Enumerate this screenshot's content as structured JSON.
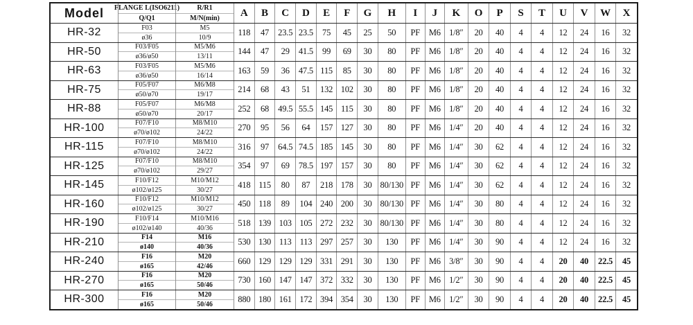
{
  "header": {
    "model_label": "Model",
    "flange_line1": "FLANGE L(ISO6211)",
    "flange_line2": "Q/Q1",
    "r_line1": "R/R1",
    "r_line2": "M/N(min)",
    "dim_columns": [
      "A",
      "B",
      "C",
      "D",
      "E",
      "F",
      "G",
      "H",
      "I",
      "J",
      "K",
      "O",
      "P",
      "S",
      "T",
      "U",
      "V",
      "W",
      "X"
    ]
  },
  "rows": [
    {
      "model": "HR-32",
      "flange": "F03",
      "q": "ø36",
      "r": "M5",
      "mn": "10/9",
      "values": [
        "118",
        "47",
        "23.5",
        "23.5",
        "75",
        "45",
        "25",
        "50",
        "PF",
        "M6",
        "1/8″",
        "20",
        "40",
        "4",
        "4",
        "12",
        "24",
        "16",
        "32"
      ]
    },
    {
      "model": "HR-50",
      "flange": "F03/F05",
      "q": "ø36/ø50",
      "r": "M5/M6",
      "mn": "13/11",
      "values": [
        "144",
        "47",
        "29",
        "41.5",
        "99",
        "69",
        "30",
        "80",
        "PF",
        "M6",
        "1/8″",
        "20",
        "40",
        "4",
        "4",
        "12",
        "24",
        "16",
        "32"
      ]
    },
    {
      "model": "HR-63",
      "flange": "F03/F05",
      "q": "ø36/ø50",
      "r": "M5/M6",
      "mn": "16/14",
      "values": [
        "163",
        "59",
        "36",
        "47.5",
        "115",
        "85",
        "30",
        "80",
        "PF",
        "M6",
        "1/8″",
        "20",
        "40",
        "4",
        "4",
        "12",
        "24",
        "16",
        "32"
      ]
    },
    {
      "model": "HR-75",
      "flange": "F05/F07",
      "q": "ø50/ø70",
      "r": "M6/M8",
      "mn": "19/17",
      "values": [
        "214",
        "68",
        "43",
        "51",
        "132",
        "102",
        "30",
        "80",
        "PF",
        "M6",
        "1/8″",
        "20",
        "40",
        "4",
        "4",
        "12",
        "24",
        "16",
        "32"
      ]
    },
    {
      "model": "HR-88",
      "flange": "F05/F07",
      "q": "ø50/ø70",
      "r": "M6/M8",
      "mn": "20/17",
      "values": [
        "252",
        "68",
        "49.5",
        "55.5",
        "145",
        "115",
        "30",
        "80",
        "PF",
        "M6",
        "1/8″",
        "20",
        "40",
        "4",
        "4",
        "12",
        "24",
        "16",
        "32"
      ]
    },
    {
      "model": "HR-100",
      "flange": "F07/F10",
      "q": "ø70/ø102",
      "r": "M8/M10",
      "mn": "24/22",
      "values": [
        "270",
        "95",
        "56",
        "64",
        "157",
        "127",
        "30",
        "80",
        "PF",
        "M6",
        "1/4″",
        "20",
        "40",
        "4",
        "4",
        "12",
        "24",
        "16",
        "32"
      ]
    },
    {
      "model": "HR-115",
      "flange": "F07/F10",
      "q": "ø70/ø102",
      "r": "M8/M10",
      "mn": "24/22",
      "values": [
        "316",
        "97",
        "64.5",
        "74.5",
        "185",
        "145",
        "30",
        "80",
        "PF",
        "M6",
        "1/4″",
        "30",
        "62",
        "4",
        "4",
        "12",
        "24",
        "16",
        "32"
      ]
    },
    {
      "model": "HR-125",
      "flange": "F07/F10",
      "q": "ø70/ø102",
      "r": "M8/M10",
      "mn": "29/27",
      "values": [
        "354",
        "97",
        "69",
        "78.5",
        "197",
        "157",
        "30",
        "80",
        "PF",
        "M6",
        "1/4″",
        "30",
        "62",
        "4",
        "4",
        "12",
        "24",
        "16",
        "32"
      ]
    },
    {
      "model": "HR-145",
      "flange": "F10/F12",
      "q": "ø102/ø125",
      "r": "M10/M12",
      "mn": "30/27",
      "values": [
        "418",
        "115",
        "80",
        "87",
        "218",
        "178",
        "30",
        "80/130",
        "PF",
        "M6",
        "1/4″",
        "30",
        "62",
        "4",
        "4",
        "12",
        "24",
        "16",
        "32"
      ]
    },
    {
      "model": "HR-160",
      "flange": "F10/F12",
      "q": "ø102/ø125",
      "r": "M10/M12",
      "mn": "30/27",
      "values": [
        "450",
        "118",
        "89",
        "104",
        "240",
        "200",
        "30",
        "80/130",
        "PF",
        "M6",
        "1/4″",
        "30",
        "80",
        "4",
        "4",
        "12",
        "24",
        "16",
        "32"
      ]
    },
    {
      "model": "HR-190",
      "flange": "F10/F14",
      "q": "ø102/ø140",
      "r": "M10/M16",
      "mn": "40/36",
      "values": [
        "518",
        "139",
        "103",
        "105",
        "272",
        "232",
        "30",
        "80/130",
        "PF",
        "M6",
        "1/4″",
        "30",
        "80",
        "4",
        "4",
        "12",
        "24",
        "16",
        "32"
      ]
    },
    {
      "model": "HR-210",
      "flange": "F14",
      "q": "ø140",
      "r": "M16",
      "mn": "40/36",
      "values": [
        "530",
        "130",
        "113",
        "113",
        "297",
        "257",
        "30",
        "130",
        "PF",
        "M6",
        "1/4″",
        "30",
        "90",
        "4",
        "4",
        "12",
        "24",
        "16",
        "32"
      ]
    },
    {
      "model": "HR-240",
      "flange": "F16",
      "q": "ø165",
      "r": "M20",
      "mn": "42/46",
      "values": [
        "660",
        "129",
        "129",
        "129",
        "331",
        "291",
        "30",
        "130",
        "PF",
        "M6",
        "3/8″",
        "30",
        "90",
        "4",
        "4",
        "20",
        "40",
        "22.5",
        "45"
      ]
    },
    {
      "model": "HR-270",
      "flange": "F16",
      "q": "ø165",
      "r": "M20",
      "mn": "50/46",
      "values": [
        "730",
        "160",
        "147",
        "147",
        "372",
        "332",
        "30",
        "130",
        "PF",
        "M6",
        "1/2″",
        "30",
        "90",
        "4",
        "4",
        "20",
        "40",
        "22.5",
        "45"
      ]
    },
    {
      "model": "HR-300",
      "flange": "F16",
      "q": "ø165",
      "r": "M20",
      "mn": "50/46",
      "values": [
        "880",
        "180",
        "161",
        "172",
        "394",
        "354",
        "30",
        "130",
        "PF",
        "M6",
        "1/2″",
        "30",
        "90",
        "4",
        "4",
        "20",
        "40",
        "22.5",
        "45"
      ]
    }
  ]
}
